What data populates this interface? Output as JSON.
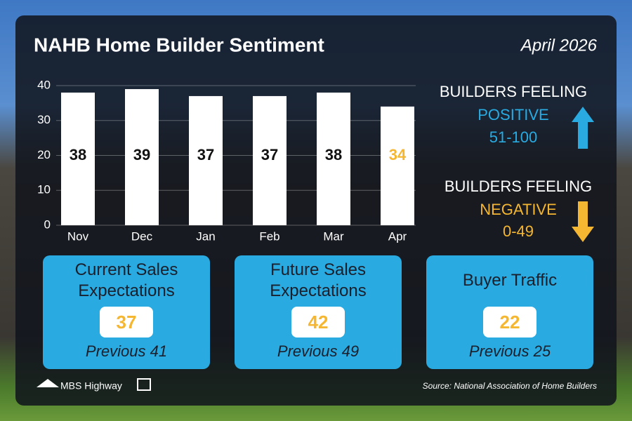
{
  "chart_data": {
    "type": "bar",
    "title": "NAHB Home Builder Sentiment",
    "subtitle": "April 2026",
    "categories": [
      "Nov",
      "Dec",
      "Jan",
      "Feb",
      "Mar",
      "Apr"
    ],
    "values": [
      38,
      39,
      37,
      37,
      38,
      34
    ],
    "color": "#ffffff",
    "label_colors": [
      "#111111",
      "#111111",
      "#111111",
      "#111111",
      "#111111",
      "#f5b731"
    ],
    "ylim": [
      0,
      40
    ],
    "yticks": [
      0,
      10,
      20,
      30,
      40
    ],
    "grid": true
  },
  "legend": {
    "positive": {
      "heading": "BUILDERS FEELING",
      "label": "POSITIVE",
      "range": "51-100",
      "color": "#29abe2"
    },
    "negative": {
      "heading": "BUILDERS FEELING",
      "label": "NEGATIVE",
      "range": "0-49",
      "color": "#f5b731"
    }
  },
  "cards": [
    {
      "title": "Current Sales Expectations",
      "value": 37,
      "previous": "Previous 41"
    },
    {
      "title": "Future Sales Expectations",
      "value": 42,
      "previous": "Previous 49"
    },
    {
      "title": "Buyer Traffic",
      "value": 22,
      "previous": "Previous 25"
    }
  ],
  "footer": {
    "logo": "MBS Highway",
    "source": "Source: National Association of Home Builders"
  }
}
